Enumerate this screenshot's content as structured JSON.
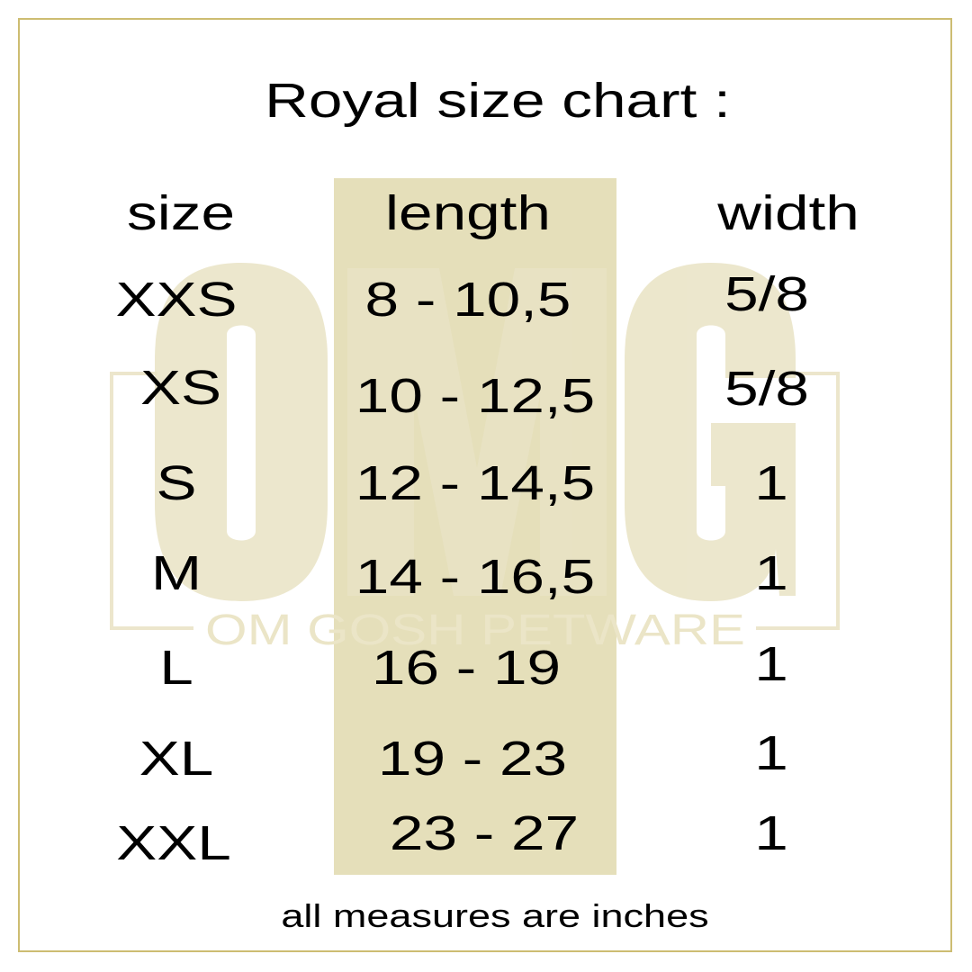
{
  "title": "Royal  size chart :",
  "headers": {
    "size": "size",
    "length": "length",
    "width": "width"
  },
  "rows": [
    {
      "size": "XXS",
      "length": "8 - 10,5",
      "width": "5/8"
    },
    {
      "size": "XS",
      "length": "10 - 12,5",
      "width": "5/8"
    },
    {
      "size": "S",
      "length": "12 - 14,5",
      "width": "1"
    },
    {
      "size": "M",
      "length": "14 - 16,5",
      "width": "1"
    },
    {
      "size": "L",
      "length": "16 - 19",
      "width": "1"
    },
    {
      "size": "XL",
      "length": "19 - 23",
      "width": "1"
    },
    {
      "size": "XXL",
      "length": "23 - 27",
      "width": "1"
    }
  ],
  "footer": "all measures are inches",
  "watermark": {
    "logo": "OMG",
    "tagline": "OM GOSH PETWARE"
  },
  "colors": {
    "border": "#cdbd72",
    "highlight_column": "#e5dfba",
    "watermark": "#ede8cf"
  }
}
